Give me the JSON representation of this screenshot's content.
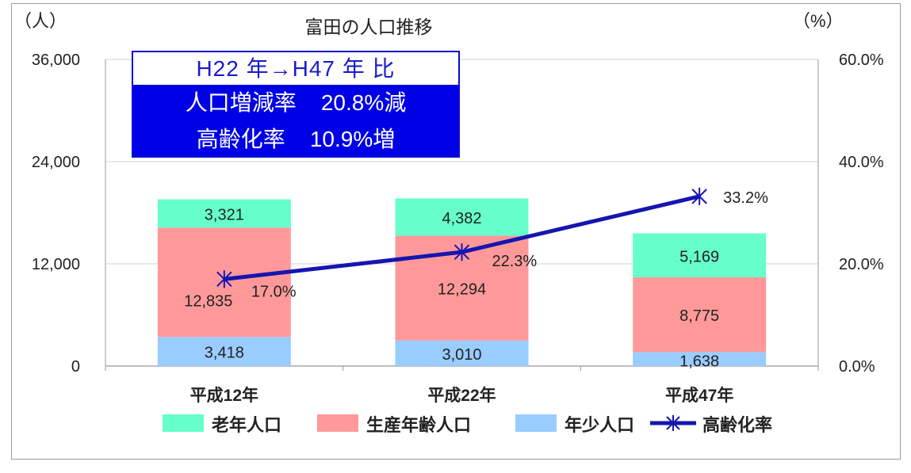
{
  "chart_data": {
    "type": "bar",
    "title": "富田の人口推移",
    "y_left_unit": "（人）",
    "y_right_unit": "（%）",
    "y_left_ticks": [
      "36,000",
      "24,000",
      "12,000",
      "0"
    ],
    "y_right_ticks": [
      "60.0%",
      "40.0%",
      "20.0%",
      "0.0%"
    ],
    "ylim": [
      0,
      36000
    ],
    "y2lim": [
      0,
      60
    ],
    "categories": [
      "平成12年",
      "平成22年",
      "平成47年"
    ],
    "series": [
      {
        "name": "年少人口",
        "values": [
          3418,
          3010,
          1638
        ],
        "labels": [
          "3,418",
          "3,010",
          "1,638"
        ],
        "color": "#99ccff"
      },
      {
        "name": "生産年齢人口",
        "values": [
          12835,
          12294,
          8775
        ],
        "labels": [
          "12,835",
          "12,294",
          "8,775"
        ],
        "color": "#ff9999"
      },
      {
        "name": "老年人口",
        "values": [
          3321,
          4382,
          5169
        ],
        "labels": [
          "3,321",
          "4,382",
          "5,169"
        ],
        "color": "#66ffcc"
      }
    ],
    "line_series": {
      "name": "高齢化率",
      "values": [
        17.0,
        22.3,
        33.2
      ],
      "labels": [
        "17.0%",
        "22.3%",
        "33.2%"
      ],
      "color": "#1515b0"
    },
    "legend": [
      "老年人口",
      "生産年齢人口",
      "年少人口",
      "高齢化率"
    ],
    "legend_position": "bottom",
    "grid": true
  },
  "callout": {
    "title": "H22 年→H47 年  比",
    "line1": "人口増減率    20.8%減",
    "line2": "高齢化率    10.9%増"
  }
}
